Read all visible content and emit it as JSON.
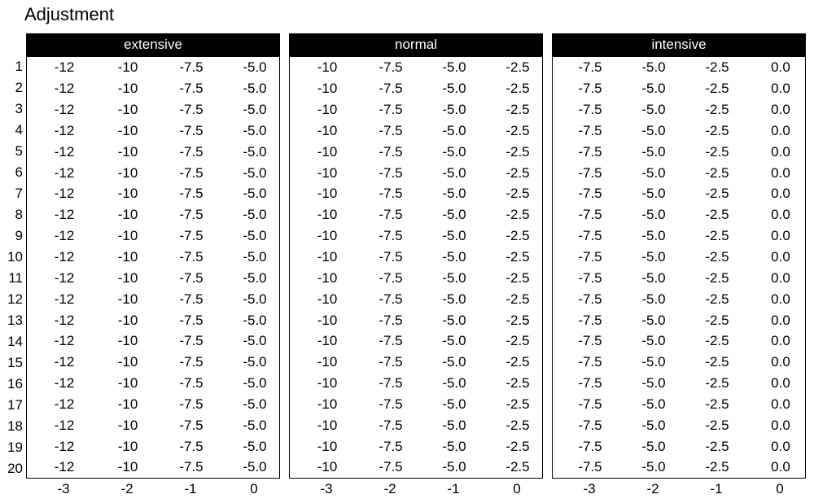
{
  "title": "Adjustment",
  "row_labels": [
    "1",
    "2",
    "3",
    "4",
    "5",
    "6",
    "7",
    "8",
    "9",
    "10",
    "11",
    "12",
    "13",
    "14",
    "15",
    "16",
    "17",
    "18",
    "19",
    "20"
  ],
  "panels": [
    {
      "header": "extensive",
      "axis_labels": [
        "-3",
        "-2",
        "-1",
        "0"
      ]
    },
    {
      "header": "normal",
      "axis_labels": [
        "-3",
        "-2",
        "-1",
        "0"
      ]
    },
    {
      "header": "intensive",
      "axis_labels": [
        "-3",
        "-2",
        "-1",
        "0"
      ]
    }
  ],
  "colors": {
    "header_bg": "#000000",
    "header_text": "#ffffff",
    "body_bg": "#ffffff",
    "text": "#000000",
    "border": "#000000"
  },
  "chart_data": [
    {
      "type": "table",
      "title": "extensive",
      "x_ticks": [
        -3,
        -2,
        -1,
        0
      ],
      "row_labels": [
        1,
        2,
        3,
        4,
        5,
        6,
        7,
        8,
        9,
        10,
        11,
        12,
        13,
        14,
        15,
        16,
        17,
        18,
        19,
        20
      ],
      "column_values": [
        -12,
        -10,
        -7.5,
        -5.0
      ],
      "rows": [
        [
          "-12",
          "-10",
          "-7.5",
          "-5.0"
        ],
        [
          "-12",
          "-10",
          "-7.5",
          "-5.0"
        ],
        [
          "-12",
          "-10",
          "-7.5",
          "-5.0"
        ],
        [
          "-12",
          "-10",
          "-7.5",
          "-5.0"
        ],
        [
          "-12",
          "-10",
          "-7.5",
          "-5.0"
        ],
        [
          "-12",
          "-10",
          "-7.5",
          "-5.0"
        ],
        [
          "-12",
          "-10",
          "-7.5",
          "-5.0"
        ],
        [
          "-12",
          "-10",
          "-7.5",
          "-5.0"
        ],
        [
          "-12",
          "-10",
          "-7.5",
          "-5.0"
        ],
        [
          "-12",
          "-10",
          "-7.5",
          "-5.0"
        ],
        [
          "-12",
          "-10",
          "-7.5",
          "-5.0"
        ],
        [
          "-12",
          "-10",
          "-7.5",
          "-5.0"
        ],
        [
          "-12",
          "-10",
          "-7.5",
          "-5.0"
        ],
        [
          "-12",
          "-10",
          "-7.5",
          "-5.0"
        ],
        [
          "-12",
          "-10",
          "-7.5",
          "-5.0"
        ],
        [
          "-12",
          "-10",
          "-7.5",
          "-5.0"
        ],
        [
          "-12",
          "-10",
          "-7.5",
          "-5.0"
        ],
        [
          "-12",
          "-10",
          "-7.5",
          "-5.0"
        ],
        [
          "-12",
          "-10",
          "-7.5",
          "-5.0"
        ],
        [
          "-12",
          "-10",
          "-7.5",
          "-5.0"
        ]
      ]
    },
    {
      "type": "table",
      "title": "normal",
      "x_ticks": [
        -3,
        -2,
        -1,
        0
      ],
      "row_labels": [
        1,
        2,
        3,
        4,
        5,
        6,
        7,
        8,
        9,
        10,
        11,
        12,
        13,
        14,
        15,
        16,
        17,
        18,
        19,
        20
      ],
      "column_values": [
        -10,
        -7.5,
        -5.0,
        -2.5
      ],
      "rows": [
        [
          "-10",
          "-7.5",
          "-5.0",
          "-2.5"
        ],
        [
          "-10",
          "-7.5",
          "-5.0",
          "-2.5"
        ],
        [
          "-10",
          "-7.5",
          "-5.0",
          "-2.5"
        ],
        [
          "-10",
          "-7.5",
          "-5.0",
          "-2.5"
        ],
        [
          "-10",
          "-7.5",
          "-5.0",
          "-2.5"
        ],
        [
          "-10",
          "-7.5",
          "-5.0",
          "-2.5"
        ],
        [
          "-10",
          "-7.5",
          "-5.0",
          "-2.5"
        ],
        [
          "-10",
          "-7.5",
          "-5.0",
          "-2.5"
        ],
        [
          "-10",
          "-7.5",
          "-5.0",
          "-2.5"
        ],
        [
          "-10",
          "-7.5",
          "-5.0",
          "-2.5"
        ],
        [
          "-10",
          "-7.5",
          "-5.0",
          "-2.5"
        ],
        [
          "-10",
          "-7.5",
          "-5.0",
          "-2.5"
        ],
        [
          "-10",
          "-7.5",
          "-5.0",
          "-2.5"
        ],
        [
          "-10",
          "-7.5",
          "-5.0",
          "-2.5"
        ],
        [
          "-10",
          "-7.5",
          "-5.0",
          "-2.5"
        ],
        [
          "-10",
          "-7.5",
          "-5.0",
          "-2.5"
        ],
        [
          "-10",
          "-7.5",
          "-5.0",
          "-2.5"
        ],
        [
          "-10",
          "-7.5",
          "-5.0",
          "-2.5"
        ],
        [
          "-10",
          "-7.5",
          "-5.0",
          "-2.5"
        ],
        [
          "-10",
          "-7.5",
          "-5.0",
          "-2.5"
        ]
      ]
    },
    {
      "type": "table",
      "title": "intensive",
      "x_ticks": [
        -3,
        -2,
        -1,
        0
      ],
      "row_labels": [
        1,
        2,
        3,
        4,
        5,
        6,
        7,
        8,
        9,
        10,
        11,
        12,
        13,
        14,
        15,
        16,
        17,
        18,
        19,
        20
      ],
      "column_values": [
        -7.5,
        -5.0,
        -2.5,
        0.0
      ],
      "rows": [
        [
          "-7.5",
          "-5.0",
          "-2.5",
          "0.0"
        ],
        [
          "-7.5",
          "-5.0",
          "-2.5",
          "0.0"
        ],
        [
          "-7.5",
          "-5.0",
          "-2.5",
          "0.0"
        ],
        [
          "-7.5",
          "-5.0",
          "-2.5",
          "0.0"
        ],
        [
          "-7.5",
          "-5.0",
          "-2.5",
          "0.0"
        ],
        [
          "-7.5",
          "-5.0",
          "-2.5",
          "0.0"
        ],
        [
          "-7.5",
          "-5.0",
          "-2.5",
          "0.0"
        ],
        [
          "-7.5",
          "-5.0",
          "-2.5",
          "0.0"
        ],
        [
          "-7.5",
          "-5.0",
          "-2.5",
          "0.0"
        ],
        [
          "-7.5",
          "-5.0",
          "-2.5",
          "0.0"
        ],
        [
          "-7.5",
          "-5.0",
          "-2.5",
          "0.0"
        ],
        [
          "-7.5",
          "-5.0",
          "-2.5",
          "0.0"
        ],
        [
          "-7.5",
          "-5.0",
          "-2.5",
          "0.0"
        ],
        [
          "-7.5",
          "-5.0",
          "-2.5",
          "0.0"
        ],
        [
          "-7.5",
          "-5.0",
          "-2.5",
          "0.0"
        ],
        [
          "-7.5",
          "-5.0",
          "-2.5",
          "0.0"
        ],
        [
          "-7.5",
          "-5.0",
          "-2.5",
          "0.0"
        ],
        [
          "-7.5",
          "-5.0",
          "-2.5",
          "0.0"
        ],
        [
          "-7.5",
          "-5.0",
          "-2.5",
          "0.0"
        ],
        [
          "-7.5",
          "-5.0",
          "-2.5",
          "0.0"
        ]
      ]
    }
  ]
}
